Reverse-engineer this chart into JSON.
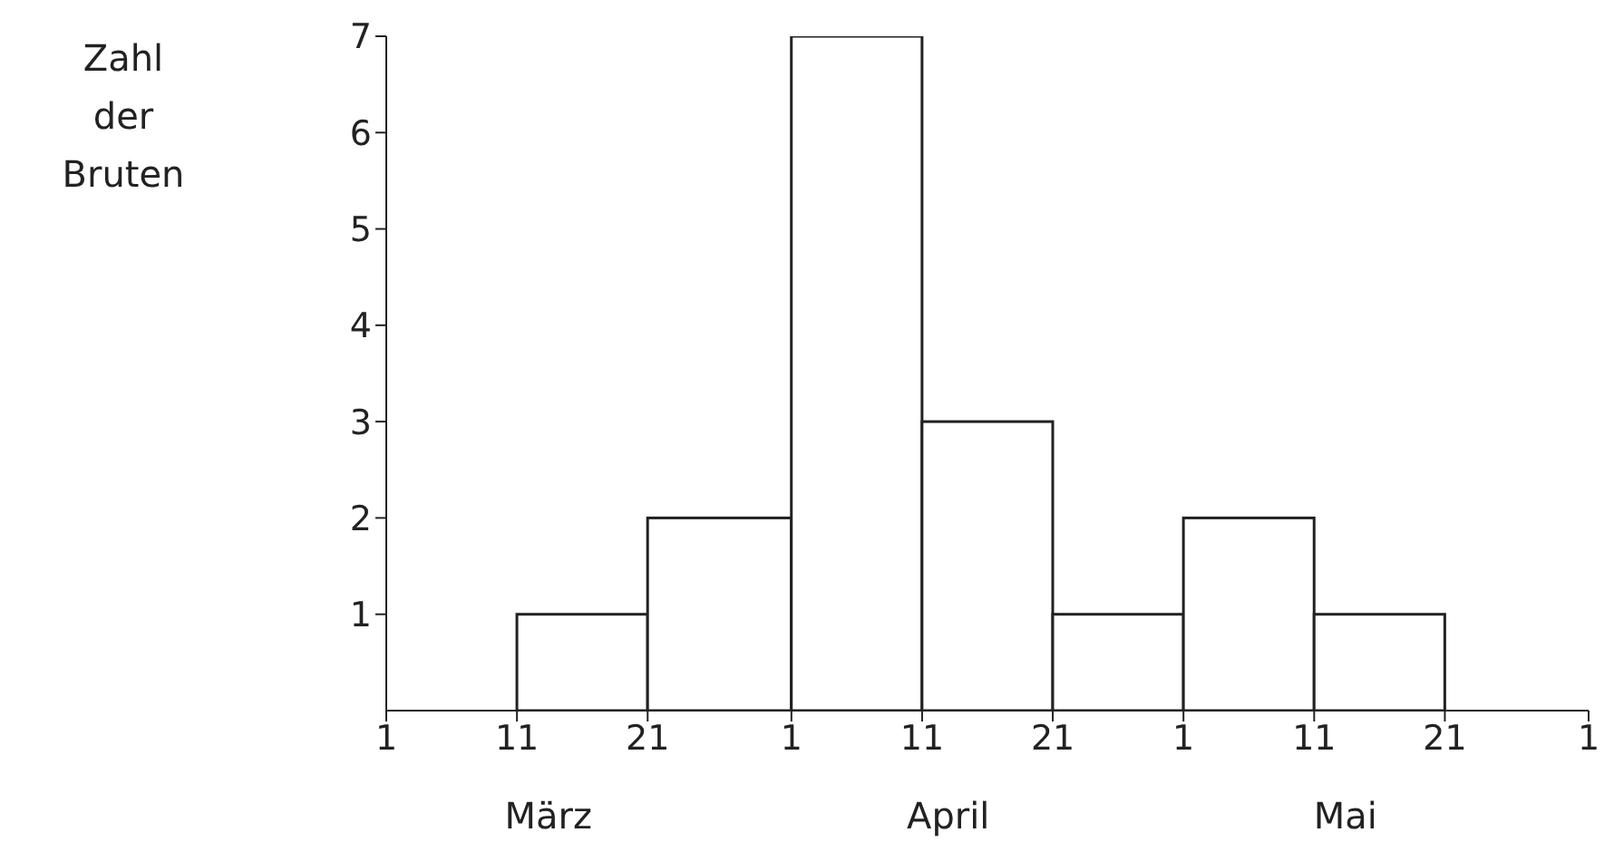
{
  "chart_data": {
    "type": "histogram",
    "ylabel": "Zahl der Bruten",
    "bins": [
      "--03-11",
      "--03-21",
      "--04-01",
      "--04-11",
      "--04-21",
      "--05-01",
      "--05-11",
      "--05-21"
    ],
    "values": [
      1,
      2,
      7,
      3,
      1,
      2,
      1
    ],
    "color": "#ffffff",
    "xlim": [
      "--03-01",
      "--06-01"
    ],
    "xticks": [
      {
        "value": "--03-01",
        "label": "1"
      },
      {
        "value": "--03-11",
        "label": "11"
      },
      {
        "value": "--03-21",
        "label": "21"
      },
      {
        "value": "--04-01",
        "label": "1"
      },
      {
        "value": "--04-11",
        "label": "11"
      },
      {
        "value": "--04-21",
        "label": "21"
      },
      {
        "value": "--05-01",
        "label": "1"
      },
      {
        "value": "--05-11",
        "label": "11"
      },
      {
        "value": "--05-21",
        "label": "21"
      },
      {
        "value": "--06-01",
        "label": "1"
      }
    ],
    "ylim": [
      0,
      7
    ],
    "yticks": [
      1,
      2,
      3,
      4,
      5,
      6,
      7
    ],
    "annotations": [
      "März",
      "April",
      "Mai"
    ],
    "grid": false,
    "legend": false
  }
}
